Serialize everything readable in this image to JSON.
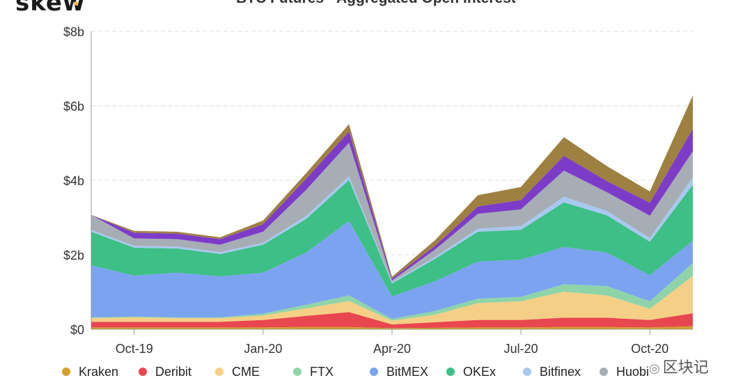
{
  "brand": {
    "logo_text": "skew"
  },
  "watermark": {
    "text": "区块记"
  },
  "chart_data": {
    "type": "area",
    "stacked": true,
    "title": "BTC Futures - Aggregated Open Interest",
    "xlabel": "",
    "ylabel": "",
    "ylim": [
      0,
      8
    ],
    "yticks": [
      "$0",
      "$2b",
      "$4b",
      "$6b",
      "$8b"
    ],
    "xtick_labels": [
      "Oct-19",
      "Jan-20",
      "Apr-20",
      "Jul-20",
      "Oct-20"
    ],
    "grid": true,
    "legend_position": "bottom",
    "x": [
      "Sep-19",
      "Oct-19",
      "Nov-19",
      "Dec-19",
      "Jan-20",
      "Feb-20",
      "Mar-20",
      "Apr-20",
      "May-20",
      "Jun-20",
      "Jul-20",
      "Aug-20",
      "Sep-20",
      "Oct-20",
      "Nov-20"
    ],
    "series": [
      {
        "name": "Kraken",
        "color": "#d4a02c",
        "values": [
          0.05,
          0.05,
          0.05,
          0.05,
          0.05,
          0.06,
          0.06,
          0.03,
          0.04,
          0.05,
          0.05,
          0.06,
          0.06,
          0.05,
          0.08
        ]
      },
      {
        "name": "Deribit",
        "color": "#e8474f",
        "values": [
          0.15,
          0.15,
          0.15,
          0.15,
          0.2,
          0.3,
          0.4,
          0.1,
          0.15,
          0.2,
          0.2,
          0.25,
          0.25,
          0.2,
          0.35
        ]
      },
      {
        "name": "CME",
        "color": "#f5cf86",
        "values": [
          0.1,
          0.12,
          0.1,
          0.1,
          0.12,
          0.2,
          0.3,
          0.1,
          0.2,
          0.45,
          0.5,
          0.7,
          0.6,
          0.3,
          1.0
        ]
      },
      {
        "name": "FTX",
        "color": "#8fd4a8",
        "values": [
          0.02,
          0.02,
          0.02,
          0.02,
          0.05,
          0.1,
          0.15,
          0.05,
          0.1,
          0.12,
          0.12,
          0.2,
          0.25,
          0.2,
          0.35
        ]
      },
      {
        "name": "BitMEX",
        "color": "#7ba3f0",
        "values": [
          1.4,
          1.1,
          1.2,
          1.1,
          1.1,
          1.4,
          2.0,
          0.6,
          0.8,
          1.0,
          1.0,
          1.0,
          0.9,
          0.7,
          0.6
        ]
      },
      {
        "name": "OKEx",
        "color": "#3dbf86",
        "values": [
          0.9,
          0.75,
          0.65,
          0.6,
          0.75,
          0.9,
          1.1,
          0.35,
          0.6,
          0.8,
          0.8,
          1.2,
          1.0,
          0.9,
          1.5
        ]
      },
      {
        "name": "Bitfinex",
        "color": "#a8c8f0",
        "values": [
          0.05,
          0.05,
          0.05,
          0.05,
          0.05,
          0.08,
          0.1,
          0.03,
          0.05,
          0.08,
          0.1,
          0.15,
          0.12,
          0.1,
          0.2
        ]
      },
      {
        "name": "Huobi",
        "color": "#a7adb5",
        "values": [
          0.4,
          0.2,
          0.2,
          0.2,
          0.3,
          0.7,
          0.9,
          0.05,
          0.2,
          0.4,
          0.45,
          0.7,
          0.5,
          0.6,
          0.7
        ]
      },
      {
        "name": "",
        "color": "#7d3cc8",
        "values": [
          0.0,
          0.15,
          0.15,
          0.15,
          0.2,
          0.3,
          0.3,
          0.05,
          0.1,
          0.2,
          0.25,
          0.4,
          0.3,
          0.35,
          0.6
        ]
      },
      {
        "name": "",
        "color": "#9e8040",
        "values": [
          0.0,
          0.05,
          0.05,
          0.05,
          0.1,
          0.15,
          0.2,
          0.05,
          0.15,
          0.3,
          0.35,
          0.5,
          0.4,
          0.3,
          0.9
        ]
      }
    ]
  }
}
